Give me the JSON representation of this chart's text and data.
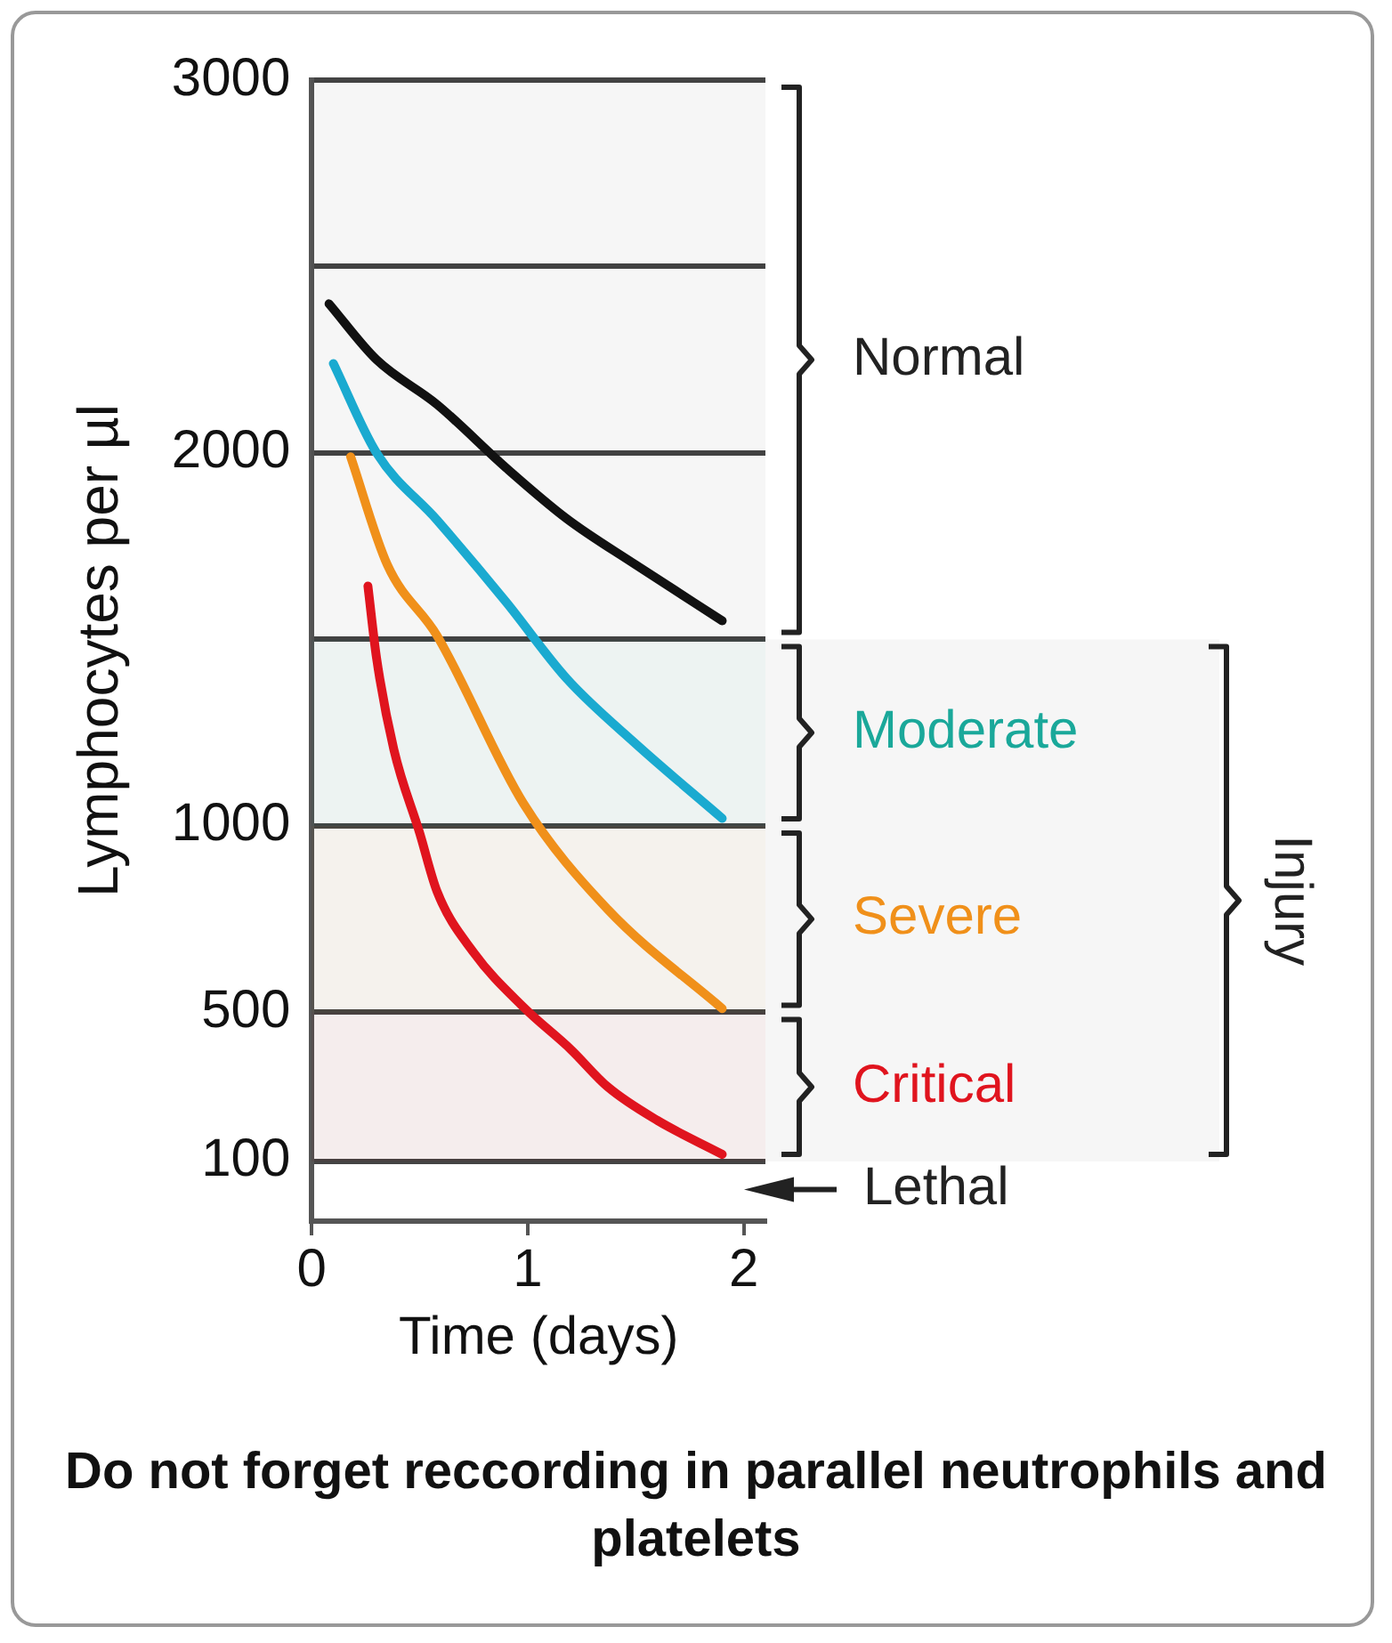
{
  "chart_data": {
    "type": "line",
    "xlabel": "Time (days)",
    "ylabel": "Lymphocytes per µl",
    "xlim": [
      0,
      2.1
    ],
    "xticks": [
      0,
      1,
      2
    ],
    "ylim": [
      -60,
      3000
    ],
    "yticks": [
      100,
      500,
      1000,
      {
        "value": 1500,
        "label": null
      },
      2000,
      {
        "value": 2500,
        "label": null
      },
      3000
    ],
    "grid": "y",
    "legend": false,
    "marker": "none",
    "line_style": "solid",
    "series": [
      {
        "color": "#111111",
        "x": [
          0.08,
          0.3,
          0.58,
          0.9,
          1.18,
          1.5,
          1.9
        ],
        "values": [
          2400,
          2250,
          2130,
          1960,
          1824,
          1700,
          1550
        ]
      },
      {
        "color": "#1aaad0",
        "x": [
          0.1,
          0.3,
          0.58,
          0.9,
          1.18,
          1.5,
          1.9
        ],
        "values": [
          2240,
          2000,
          1820,
          1600,
          1395,
          1220,
          1020
        ]
      },
      {
        "color": "#f0901a",
        "x": [
          0.18,
          0.35,
          0.58,
          0.98,
          1.37,
          1.9
        ],
        "values": [
          1990,
          1700,
          1510,
          1060,
          776,
          510
        ]
      },
      {
        "color": "#e0141e",
        "x": [
          0.26,
          0.3,
          0.38,
          0.5,
          0.58,
          0.75,
          0.98,
          1.2,
          1.37,
          1.6,
          1.9
        ],
        "values": [
          1643,
          1450,
          1205,
          980,
          824,
          660,
          514,
          400,
          300,
          210,
          119
        ]
      }
    ],
    "bands": [
      {
        "axis": "y",
        "from": 1500,
        "to": 3000,
        "label": "Normal",
        "color": "#222222"
      },
      {
        "axis": "y",
        "from": 1000,
        "to": 1500,
        "label": "Moderate",
        "color": "#1aa89a"
      },
      {
        "axis": "y",
        "from": 500,
        "to": 1000,
        "label": "Severe",
        "color": "#f0901a"
      },
      {
        "axis": "y",
        "from": 100,
        "to": 500,
        "label": "Critical",
        "color": "#e0141e"
      },
      {
        "axis": "y",
        "from": 100,
        "to": 1500,
        "label": "Injury",
        "color": "#222222"
      }
    ],
    "annotations": [
      {
        "text": "Lethal",
        "x": 2.1,
        "y": 25
      },
      "Do not forget reccording in parallel neutrophils and platelets"
    ]
  }
}
